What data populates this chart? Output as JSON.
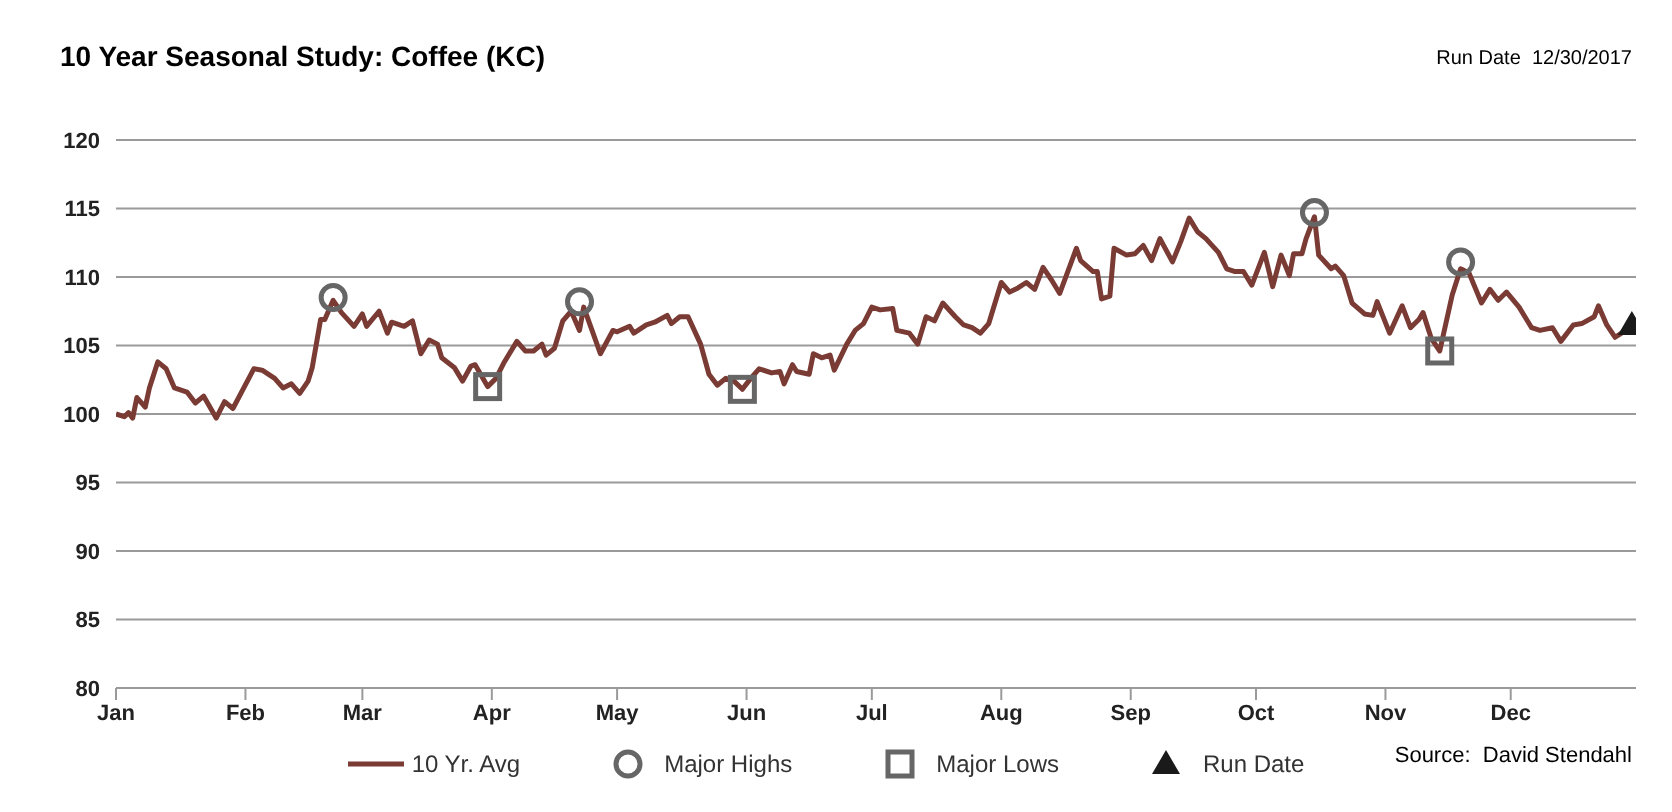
{
  "chart_data": {
    "type": "line",
    "title": "10 Year Seasonal Study: Coffee (KC)",
    "annotations": [
      "Run Date  12/30/2017",
      "Source:  David Stendahl"
    ],
    "xlim": [
      "--01-01",
      "--12-31"
    ],
    "xticks": [
      {
        "value": "--01-01",
        "label": "Jan"
      },
      {
        "value": "--02-01",
        "label": "Feb"
      },
      {
        "value": "--03-01",
        "label": "Mar"
      },
      {
        "value": "--04-01",
        "label": "Apr"
      },
      {
        "value": "--05-01",
        "label": "May"
      },
      {
        "value": "--06-01",
        "label": "Jun"
      },
      {
        "value": "--07-01",
        "label": "Jul"
      },
      {
        "value": "--08-01",
        "label": "Aug"
      },
      {
        "value": "--09-01",
        "label": "Sep"
      },
      {
        "value": "--10-01",
        "label": "Oct"
      },
      {
        "value": "--11-01",
        "label": "Nov"
      },
      {
        "value": "--12-01",
        "label": "Dec"
      }
    ],
    "ylim": [
      80,
      120
    ],
    "yticks": [
      80,
      85,
      90,
      95,
      100,
      105,
      110,
      115,
      120
    ],
    "grid": "y",
    "legend": "bottom",
    "series": [
      {
        "name": "10 Yr. Avg",
        "color": "#7a3b34",
        "marker": "none",
        "x": [
          "--01-01",
          "--01-03",
          "--01-04",
          "--01-05",
          "--01-06",
          "--01-08",
          "--01-09",
          "--01-11",
          "--01-13",
          "--01-15",
          "--01-18",
          "--01-20",
          "--01-22",
          "--01-25",
          "--01-27",
          "--01-29",
          "--02-03",
          "--02-05",
          "--02-08",
          "--02-10",
          "--02-12",
          "--02-14",
          "--02-16",
          "--02-17",
          "--02-19",
          "--02-20",
          "--02-22",
          "--02-24",
          "--02-27",
          "--03-01",
          "--03-02",
          "--03-05",
          "--03-07",
          "--03-08",
          "--03-11",
          "--03-13",
          "--03-15",
          "--03-17",
          "--03-19",
          "--03-20",
          "--03-23",
          "--03-25",
          "--03-27",
          "--03-28",
          "--03-31",
          "--04-02",
          "--04-04",
          "--04-07",
          "--04-09",
          "--04-11",
          "--04-13",
          "--04-14",
          "--04-16",
          "--04-18",
          "--04-20",
          "--04-22",
          "--04-23",
          "--04-25",
          "--04-27",
          "--04-30",
          "--05-01",
          "--05-04",
          "--05-05",
          "--05-08",
          "--05-10",
          "--05-13",
          "--05-14",
          "--05-16",
          "--05-18",
          "--05-21",
          "--05-23",
          "--05-25",
          "--05-27",
          "--05-29",
          "--05-31",
          "--06-02",
          "--06-04",
          "--06-07",
          "--06-09",
          "--06-10",
          "--06-12",
          "--06-13",
          "--06-16",
          "--06-17",
          "--06-19",
          "--06-21",
          "--06-22",
          "--06-25",
          "--06-27",
          "--06-29",
          "--07-01",
          "--07-03",
          "--07-06",
          "--07-07",
          "--07-10",
          "--07-12",
          "--07-14",
          "--07-16",
          "--07-18",
          "--07-21",
          "--07-23",
          "--07-25",
          "--07-27",
          "--07-29",
          "--08-01",
          "--08-03",
          "--08-05",
          "--08-07",
          "--08-09",
          "--08-11",
          "--08-13",
          "--08-15",
          "--08-19",
          "--08-20",
          "--08-23",
          "--08-24",
          "--08-25",
          "--08-27",
          "--08-28",
          "--08-31",
          "--09-02",
          "--09-04",
          "--09-06",
          "--09-08",
          "--09-11",
          "--09-13",
          "--09-15",
          "--09-17",
          "--09-19",
          "--09-22",
          "--09-24",
          "--09-26",
          "--09-28",
          "--09-30",
          "--10-03",
          "--10-05",
          "--10-07",
          "--10-09",
          "--10-10",
          "--10-12",
          "--10-13",
          "--10-15",
          "--10-16",
          "--10-19",
          "--10-20",
          "--10-22",
          "--10-24",
          "--10-27",
          "--10-29",
          "--10-30",
          "--11-02",
          "--11-05",
          "--11-07",
          "--11-09",
          "--11-10",
          "--11-12",
          "--11-14",
          "--11-17",
          "--11-19",
          "--11-21",
          "--11-24",
          "--11-26",
          "--11-28",
          "--11-30",
          "--12-03",
          "--12-06",
          "--12-08",
          "--12-11",
          "--12-13",
          "--12-16",
          "--12-18",
          "--12-21",
          "--12-22",
          "--12-24",
          "--12-26",
          "--12-28",
          "--12-30"
        ],
        "values": [
          100.0,
          99.8,
          100.1,
          99.7,
          101.2,
          100.5,
          101.9,
          103.8,
          103.3,
          101.9,
          101.6,
          100.8,
          101.3,
          99.7,
          100.9,
          100.4,
          103.3,
          103.2,
          102.6,
          101.9,
          102.2,
          101.5,
          102.4,
          103.4,
          106.9,
          106.9,
          108.3,
          107.4,
          106.4,
          107.3,
          106.4,
          107.5,
          105.9,
          106.7,
          106.4,
          106.8,
          104.4,
          105.4,
          105.1,
          104.1,
          103.4,
          102.4,
          103.5,
          103.6,
          102.0,
          102.6,
          103.8,
          105.3,
          104.6,
          104.6,
          105.1,
          104.3,
          104.8,
          106.8,
          107.5,
          106.1,
          107.8,
          106.1,
          104.4,
          106.1,
          106.0,
          106.4,
          105.9,
          106.5,
          106.7,
          107.2,
          106.6,
          107.1,
          107.1,
          105.1,
          102.9,
          102.1,
          102.6,
          102.4,
          101.8,
          102.6,
          103.3,
          103.0,
          103.1,
          102.2,
          103.6,
          103.1,
          102.9,
          104.4,
          104.1,
          104.3,
          103.2,
          105.1,
          106.1,
          106.6,
          107.8,
          107.6,
          107.7,
          106.1,
          105.9,
          105.1,
          107.1,
          106.8,
          108.1,
          107.1,
          106.5,
          106.3,
          105.9,
          106.6,
          109.6,
          108.9,
          109.2,
          109.6,
          109.1,
          110.7,
          109.8,
          108.8,
          112.1,
          111.2,
          110.4,
          110.4,
          108.4,
          108.6,
          112.1,
          111.6,
          111.7,
          112.3,
          111.2,
          112.8,
          111.1,
          112.6,
          114.3,
          113.3,
          112.8,
          111.8,
          110.6,
          110.4,
          110.4,
          109.4,
          111.8,
          109.3,
          111.6,
          110.1,
          111.7,
          111.7,
          112.8,
          114.4,
          111.6,
          110.6,
          110.8,
          110.1,
          108.1,
          107.3,
          107.2,
          108.2,
          105.9,
          107.9,
          106.3,
          106.9,
          107.4,
          105.5,
          104.6,
          108.7,
          110.6,
          110.3,
          108.1,
          109.1,
          108.3,
          108.9,
          107.8,
          106.3,
          106.1,
          106.3,
          105.3,
          106.5,
          106.6,
          107.1,
          107.9,
          106.5,
          105.6,
          106.0,
          106.5
        ]
      },
      {
        "name": "Major Highs",
        "type": "scatter",
        "color": "#666666",
        "marker": "circle",
        "x": [
          "--02-22",
          "--04-22",
          "--10-15",
          "--11-19"
        ],
        "values": [
          108.5,
          108.2,
          114.7,
          111.1
        ]
      },
      {
        "name": "Major Lows",
        "type": "scatter",
        "color": "#666666",
        "marker": "square",
        "x": [
          "--03-31",
          "--05-31",
          "--11-14"
        ],
        "values": [
          102.0,
          101.8,
          104.6
        ]
      },
      {
        "name": "Run Date",
        "type": "scatter",
        "color": "#1a1a1a",
        "marker": "triangle",
        "x": [
          "--12-30"
        ],
        "values": [
          106.5
        ]
      }
    ]
  }
}
